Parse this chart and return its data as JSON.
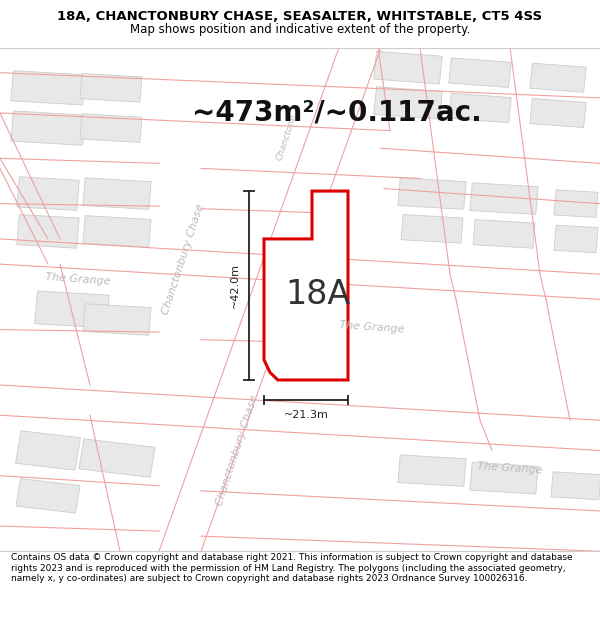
{
  "title_line1": "18A, CHANCTONBURY CHASE, SEASALTER, WHITSTABLE, CT5 4SS",
  "title_line2": "Map shows position and indicative extent of the property.",
  "area_text": "~473m²/~0.117ac.",
  "label_18A": "18A",
  "dim_width": "~21.3m",
  "dim_height": "~42.0m",
  "footer": "Contains OS data © Crown copyright and database right 2021. This information is subject to Crown copyright and database rights 2023 and is reproduced with the permission of HM Land Registry. The polygons (including the associated geometry, namely x, y co-ordinates) are subject to Crown copyright and database rights 2023 Ordnance Survey 100026316.",
  "map_bg": "#f7f6f4",
  "street_line_color": "#f0a0a0",
  "building_fill": "#e8e8e8",
  "building_edge": "#cccccc",
  "plot_fill": "#ffffff",
  "plot_edge": "#dd0000",
  "dim_color": "#222222",
  "road_label_color": "#bbbbbb",
  "area_text_color": "#111111",
  "label_color": "#333333",
  "title_fontsize": 9.5,
  "subtitle_fontsize": 8.5,
  "area_fontsize": 20,
  "label_fontsize": 24,
  "footer_fontsize": 6.5,
  "road_label_fontsize": 8.0,
  "street_lw": 0.8,
  "plot_lw": 2.2
}
